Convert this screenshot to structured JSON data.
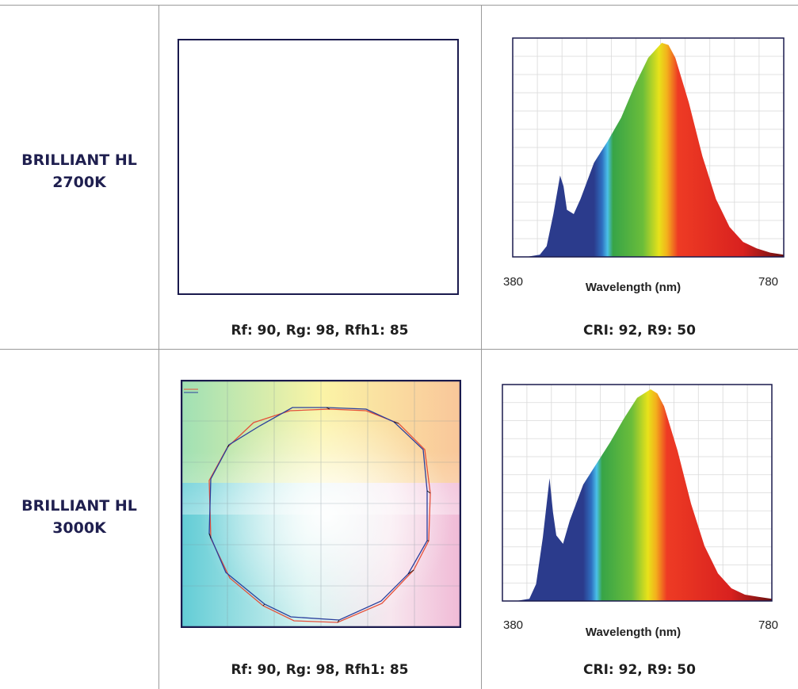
{
  "rows": [
    {
      "product": "BRILLIANT HL",
      "cct": "2700K",
      "tm30_caption": "Rf: 90, Rg: 98, Rfh1: 85",
      "cri_caption": "CRI: 92, R9: 50",
      "spectrum": {
        "x_min_label": "380",
        "x_max_label": "780",
        "xlabel": "Wavelength (nm)"
      }
    },
    {
      "product": "BRILLIANT HL",
      "cct": "3000K",
      "tm30_caption": "Rf: 90, Rg: 98, Rfh1: 85",
      "cri_caption": "CRI: 92, R9: 50",
      "spectrum": {
        "x_min_label": "380",
        "x_max_label": "780",
        "xlabel": "Wavelength (nm)"
      }
    }
  ],
  "chart_data": [
    {
      "type": "area",
      "xlabel": "Wavelength (nm)",
      "xlim": [
        380,
        780
      ],
      "ylim": [
        0,
        1
      ],
      "x": [
        380,
        400,
        420,
        430,
        440,
        450,
        455,
        460,
        470,
        480,
        500,
        520,
        540,
        560,
        580,
        600,
        610,
        620,
        640,
        660,
        680,
        700,
        720,
        740,
        760,
        780
      ],
      "values": [
        0.0,
        0.0,
        0.01,
        0.05,
        0.2,
        0.38,
        0.33,
        0.22,
        0.2,
        0.27,
        0.44,
        0.54,
        0.65,
        0.8,
        0.93,
        1.0,
        0.99,
        0.93,
        0.72,
        0.47,
        0.27,
        0.14,
        0.07,
        0.04,
        0.02,
        0.01
      ]
    },
    {
      "type": "area",
      "xlabel": "Wavelength (nm)",
      "xlim": [
        380,
        780
      ],
      "ylim": [
        0,
        1
      ],
      "x": [
        380,
        400,
        420,
        430,
        440,
        450,
        455,
        460,
        470,
        480,
        500,
        520,
        540,
        560,
        580,
        600,
        610,
        620,
        640,
        660,
        680,
        700,
        720,
        740,
        760,
        780
      ],
      "values": [
        0.0,
        0.0,
        0.01,
        0.08,
        0.3,
        0.58,
        0.42,
        0.31,
        0.27,
        0.38,
        0.55,
        0.65,
        0.75,
        0.86,
        0.96,
        1.0,
        0.98,
        0.92,
        0.71,
        0.46,
        0.26,
        0.13,
        0.06,
        0.03,
        0.02,
        0.01
      ]
    }
  ],
  "colors": {
    "frame": "#1a1a4d",
    "name_text": "#1f1f4f",
    "grid": "#d9d9d9",
    "table_lines": "#9a9a9a"
  },
  "icons": {
    "color_vector_graphic": "tm30-color-vector-graphic"
  }
}
